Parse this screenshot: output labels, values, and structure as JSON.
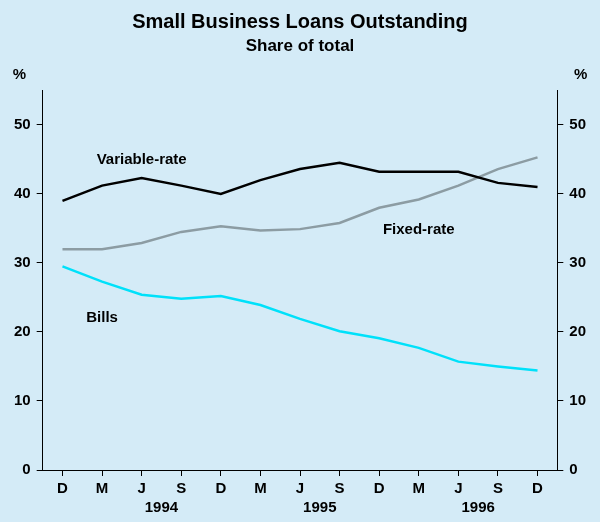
{
  "chart_data": {
    "type": "line",
    "title": "Small Business Loans Outstanding",
    "subtitle": "Share of total",
    "y_label": "%",
    "categories": [
      "D",
      "M",
      "J",
      "S",
      "D",
      "M",
      "J",
      "S",
      "D",
      "M",
      "J",
      "S",
      "D"
    ],
    "x_groups": [
      {
        "label": "1994",
        "start": 1,
        "end": 4
      },
      {
        "label": "1995",
        "start": 5,
        "end": 8
      },
      {
        "label": "1996",
        "start": 9,
        "end": 12
      }
    ],
    "series": [
      {
        "name": "Variable-rate",
        "color": "#000000",
        "values": [
          39,
          41.2,
          42.3,
          41.2,
          40,
          42,
          43.6,
          44.5,
          43.2,
          43.2,
          43.2,
          41.6,
          41
        ]
      },
      {
        "name": "Fixed-rate",
        "color": "#8c9ca3",
        "values": [
          32,
          32,
          32.9,
          34.5,
          35.3,
          34.7,
          34.9,
          35.8,
          38,
          39.2,
          41.2,
          43.6,
          45.3
        ]
      },
      {
        "name": "Bills",
        "color": "#00e1fa",
        "values": [
          29.5,
          27.3,
          25.4,
          24.8,
          25.2,
          23.9,
          21.9,
          20.1,
          19.1,
          17.7,
          15.7,
          15,
          14.4
        ]
      }
    ],
    "ylim": [
      0,
      55
    ],
    "yticks": [
      0,
      10,
      20,
      30,
      40,
      50
    ],
    "grid": false
  }
}
